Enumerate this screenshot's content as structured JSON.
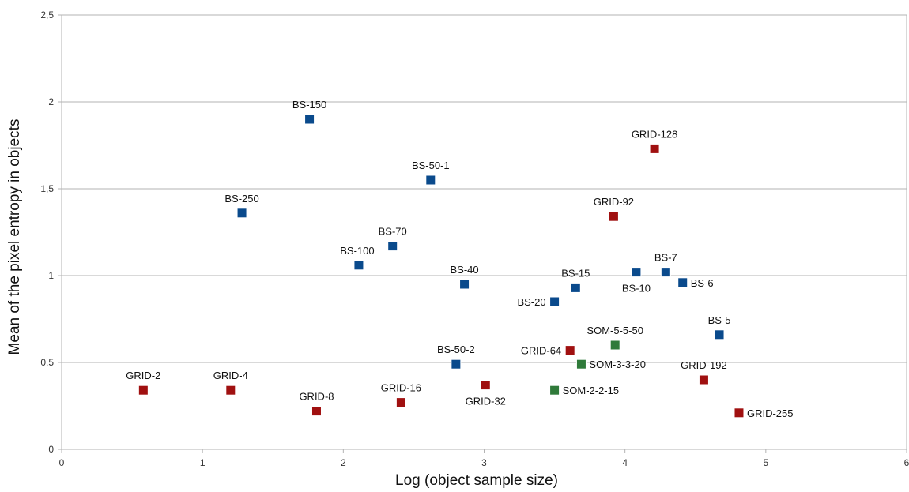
{
  "chart_data": {
    "type": "scatter",
    "title": "",
    "xlabel": "Log (object sample size)",
    "ylabel": "Mean of the pixel entropy in objects",
    "xlim": [
      0,
      6
    ],
    "ylim": [
      0,
      2.5
    ],
    "x_ticks": [
      "0",
      "1",
      "2",
      "3",
      "4",
      "5",
      "6"
    ],
    "y_ticks": [
      "0",
      "0,5",
      "1",
      "1,5",
      "2",
      "2,5"
    ],
    "grid": "horizontal",
    "legend": "none",
    "colors": {
      "BS": "#0a4a8c",
      "GRID": "#a01010",
      "SOM": "#2f7a3a"
    },
    "points": [
      {
        "label": "BS-150",
        "group": "BS",
        "x": 1.76,
        "y": 1.9,
        "pos": "above"
      },
      {
        "label": "BS-250",
        "group": "BS",
        "x": 1.28,
        "y": 1.36,
        "pos": "above"
      },
      {
        "label": "BS-50-1",
        "group": "BS",
        "x": 2.62,
        "y": 1.55,
        "pos": "above"
      },
      {
        "label": "BS-100",
        "group": "BS",
        "x": 2.11,
        "y": 1.06,
        "pos": "above-left"
      },
      {
        "label": "BS-70",
        "group": "BS",
        "x": 2.35,
        "y": 1.17,
        "pos": "above"
      },
      {
        "label": "BS-40",
        "group": "BS",
        "x": 2.86,
        "y": 0.95,
        "pos": "above"
      },
      {
        "label": "BS-20",
        "group": "BS",
        "x": 3.5,
        "y": 0.85,
        "pos": "left"
      },
      {
        "label": "BS-15",
        "group": "BS",
        "x": 3.65,
        "y": 0.93,
        "pos": "above"
      },
      {
        "label": "BS-10",
        "group": "BS",
        "x": 4.08,
        "y": 1.02,
        "pos": "below"
      },
      {
        "label": "BS-7",
        "group": "BS",
        "x": 4.29,
        "y": 1.02,
        "pos": "above"
      },
      {
        "label": "BS-6",
        "group": "BS",
        "x": 4.41,
        "y": 0.96,
        "pos": "right"
      },
      {
        "label": "BS-5",
        "group": "BS",
        "x": 4.67,
        "y": 0.66,
        "pos": "above"
      },
      {
        "label": "BS-50-2",
        "group": "BS",
        "x": 2.8,
        "y": 0.49,
        "pos": "above"
      },
      {
        "label": "GRID-2",
        "group": "GRID",
        "x": 0.58,
        "y": 0.34,
        "pos": "above"
      },
      {
        "label": "GRID-4",
        "group": "GRID",
        "x": 1.2,
        "y": 0.34,
        "pos": "above"
      },
      {
        "label": "GRID-8",
        "group": "GRID",
        "x": 1.81,
        "y": 0.22,
        "pos": "above"
      },
      {
        "label": "GRID-16",
        "group": "GRID",
        "x": 2.41,
        "y": 0.27,
        "pos": "above"
      },
      {
        "label": "GRID-32",
        "group": "GRID",
        "x": 3.01,
        "y": 0.37,
        "pos": "below"
      },
      {
        "label": "GRID-64",
        "group": "GRID",
        "x": 3.61,
        "y": 0.57,
        "pos": "left"
      },
      {
        "label": "GRID-92",
        "group": "GRID",
        "x": 3.92,
        "y": 1.34,
        "pos": "above"
      },
      {
        "label": "GRID-128",
        "group": "GRID",
        "x": 4.21,
        "y": 1.73,
        "pos": "above"
      },
      {
        "label": "GRID-192",
        "group": "GRID",
        "x": 4.56,
        "y": 0.4,
        "pos": "above"
      },
      {
        "label": "GRID-255",
        "group": "GRID",
        "x": 4.81,
        "y": 0.21,
        "pos": "right"
      },
      {
        "label": "SOM-5-5-50",
        "group": "SOM",
        "x": 3.93,
        "y": 0.6,
        "pos": "above"
      },
      {
        "label": "SOM-3-3-20",
        "group": "SOM",
        "x": 3.69,
        "y": 0.49,
        "pos": "right"
      },
      {
        "label": "SOM-2-2-15",
        "group": "SOM",
        "x": 3.5,
        "y": 0.34,
        "pos": "right"
      }
    ]
  }
}
